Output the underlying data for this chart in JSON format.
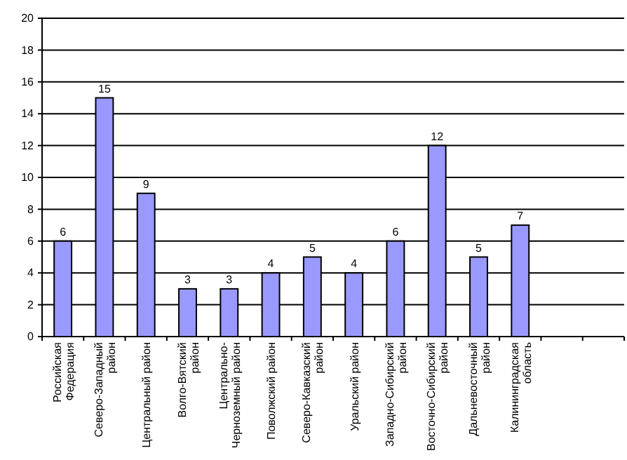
{
  "chart_data": {
    "type": "bar",
    "categories": [
      "Российская Федерация",
      "Северо-Западный район",
      "Центральный район",
      "Волго-Вятский район",
      "Центрально-Черноземный район",
      "Поволжский район",
      "Северо-Кавказский район",
      "Уральский район",
      "Западно-Сибирский район",
      "Восточно-Сибирский район",
      "Дальневосточный район",
      "Калининградская область",
      null,
      null
    ],
    "values": [
      6,
      15,
      9,
      3,
      3,
      4,
      5,
      4,
      6,
      12,
      5,
      7,
      null,
      null
    ],
    "color": "#9999ff",
    "ylim": [
      0,
      20
    ],
    "yticks": [
      0,
      2,
      4,
      6,
      8,
      10,
      12,
      14,
      16,
      18,
      20
    ],
    "grid": "y",
    "data_labels": true
  }
}
